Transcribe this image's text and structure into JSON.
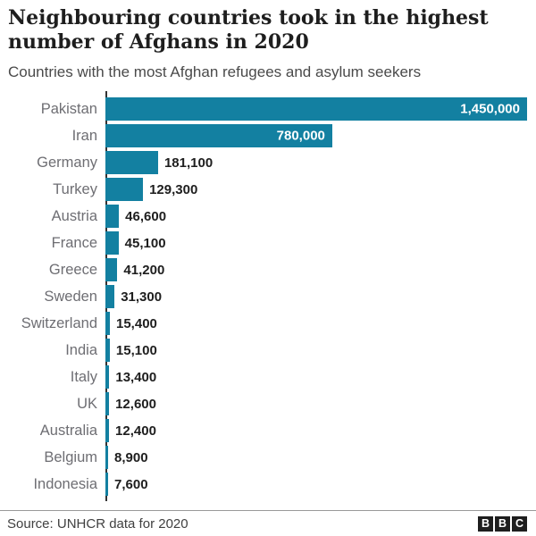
{
  "header": {
    "title": "Neighbouring countries took in the highest number of Afghans in 2020",
    "subtitle": "Countries with the most Afghan refugees and asylum seekers"
  },
  "chart_data": {
    "type": "bar",
    "orientation": "horizontal",
    "title": "Neighbouring countries took in the highest number of Afghans in 2020",
    "subtitle": "Countries with the most Afghan refugees and asylum seekers",
    "categories": [
      "Pakistan",
      "Iran",
      "Germany",
      "Turkey",
      "Austria",
      "France",
      "Greece",
      "Sweden",
      "Switzerland",
      "India",
      "Italy",
      "UK",
      "Australia",
      "Belgium",
      "Indonesia"
    ],
    "values": [
      1450000,
      780000,
      181100,
      129300,
      46600,
      45100,
      41200,
      31300,
      15400,
      15100,
      13400,
      12600,
      12400,
      8900,
      7600
    ],
    "value_labels": [
      "1,450,000",
      "780,000",
      "181,100",
      "129,300",
      "46,600",
      "45,100",
      "41,200",
      "31,300",
      "15,400",
      "15,100",
      "13,400",
      "12,600",
      "12,400",
      "8,900",
      "7,600"
    ],
    "xlim": [
      0,
      1450000
    ],
    "xlabel": "",
    "ylabel": "",
    "grid": false,
    "legend": false,
    "bar_color": "#1380A1",
    "value_label_placement": "inside bar for Pakistan and Iran (white), outside bar (black) for the rest"
  },
  "footer": {
    "source": "Source: UNHCR data for 2020",
    "logo_letters": [
      "B",
      "B",
      "C"
    ]
  },
  "colors": {
    "bar": "#1380A1",
    "title_text": "#1e1e1e",
    "subtitle_text": "#4a4a4a",
    "label_text": "#6e6e73",
    "value_text": "#1e1e1e",
    "value_text_inside": "#ffffff",
    "axis_line": "#333333",
    "divider": "#999999",
    "source_text": "#404040",
    "logo_bg": "#1e1e1e"
  }
}
